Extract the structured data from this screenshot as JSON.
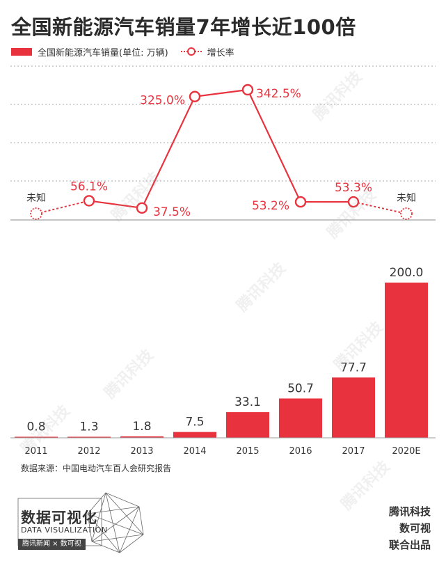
{
  "title": "全国新能源汽车销量7年增长近100倍",
  "legend": {
    "bar_label": "全国新能源汽车销量(单位: 万辆)",
    "line_label": "增长率"
  },
  "colors": {
    "accent": "#e8333e",
    "grid": "#aaaaaa",
    "text": "#333333"
  },
  "chart_data": [
    {
      "type": "line",
      "series": [
        {
          "name": "增长率",
          "unit": "%",
          "values": [
            null,
            56.1,
            37.5,
            325.0,
            342.5,
            53.2,
            53.3,
            null
          ]
        }
      ],
      "point_labels": [
        "未知",
        "56.1%",
        "37.5%",
        "325.0%",
        "342.5%",
        "53.2%",
        "53.3%",
        "未知"
      ],
      "unknown_label": "未知",
      "dotted_segments": [
        [
          0,
          1
        ],
        [
          6,
          7
        ]
      ],
      "ylim": [
        0,
        400
      ],
      "grid": true
    },
    {
      "type": "bar",
      "categories": [
        "2011",
        "2012",
        "2013",
        "2014",
        "2015",
        "2016",
        "2017",
        "2020E"
      ],
      "series": [
        {
          "name": "全国新能源汽车销量(单位: 万辆)",
          "values": [
            0.8,
            1.3,
            1.8,
            7.5,
            33.1,
            50.7,
            77.7,
            200.0
          ]
        }
      ],
      "value_labels": [
        "0.8",
        "1.3",
        "1.8",
        "7.5",
        "33.1",
        "50.7",
        "77.7",
        "200.0"
      ],
      "ylim": [
        0,
        200
      ]
    }
  ],
  "source": "数据来源：中国电动汽车百人会研究报告",
  "footer": {
    "logo_title": "数据可视化",
    "logo_subtitle": "DATA VISUALIZATION",
    "logo_partners": "腾讯新闻 × 数可视",
    "brand_lines": [
      "腾讯科技",
      "数可视",
      "联合出品"
    ]
  },
  "watermark_text": "腾讯科技"
}
